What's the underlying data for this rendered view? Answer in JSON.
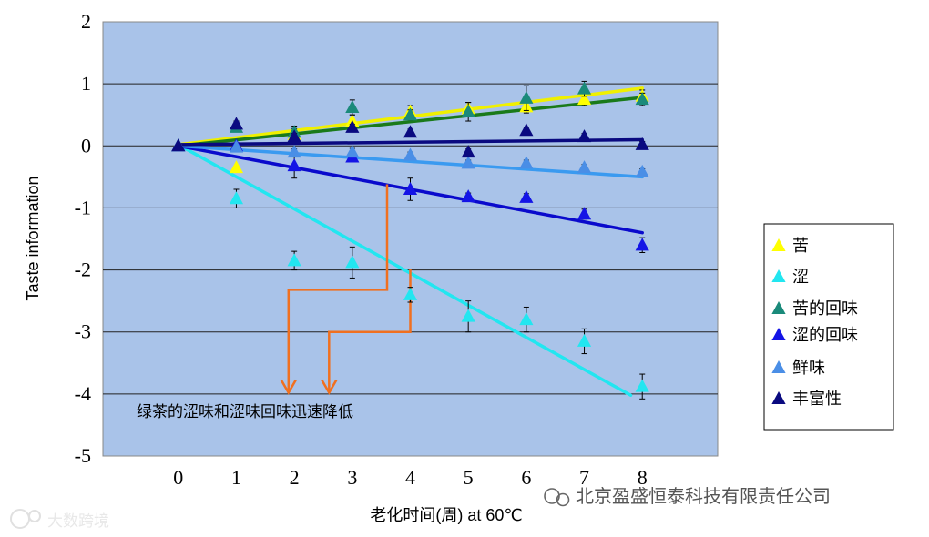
{
  "chart_data": {
    "type": "scatter",
    "title": "",
    "xlabel": "老化时间(周)    at 60℃",
    "ylabel": "Taste information",
    "xlim": [
      -1.3,
      9.3
    ],
    "ylim": [
      -5,
      2
    ],
    "x_ticks": [
      "0",
      "1",
      "2",
      "3",
      "4",
      "5",
      "6",
      "7",
      "8"
    ],
    "y_ticks": [
      "2",
      "1",
      "0",
      "-1",
      "-2",
      "-3",
      "-4",
      "-5"
    ],
    "grid": true,
    "legend_position": "right",
    "series": [
      {
        "name": "苦",
        "color": "#ffff00",
        "marker": "triangle",
        "x": [
          0,
          1,
          2,
          3,
          4,
          5,
          6,
          7,
          8
        ],
        "y": [
          0,
          -0.35,
          0.18,
          0.4,
          0.55,
          0.6,
          0.63,
          0.75,
          0.8
        ],
        "err": [
          0,
          0,
          0.1,
          0.1,
          0.1,
          0.1,
          0.1,
          0.1,
          0.1
        ],
        "trend": {
          "x0": 0,
          "y0": 0.02,
          "x1": 8,
          "y1": 0.93,
          "color": "#f0f000"
        }
      },
      {
        "name": "涩",
        "color": "#22e6f0",
        "marker": "triangle",
        "x": [
          0,
          1,
          2,
          3,
          4,
          5,
          6,
          7,
          8
        ],
        "y": [
          0,
          -0.85,
          -1.85,
          -1.88,
          -2.4,
          -2.75,
          -2.8,
          -3.15,
          -3.88
        ],
        "err": [
          0,
          0.15,
          0.15,
          0.25,
          0.12,
          0.25,
          0.2,
          0.2,
          0.2
        ],
        "trend": {
          "x0": 0,
          "y0": 0.02,
          "x1": 7.8,
          "y1": -4.02,
          "color": "#22e6f0"
        }
      },
      {
        "name": "苦的回味",
        "color": "#1a8a7a",
        "marker": "triangle",
        "x": [
          0,
          1,
          2,
          3,
          4,
          5,
          6,
          7,
          8
        ],
        "y": [
          0,
          0.3,
          0.22,
          0.62,
          0.5,
          0.55,
          0.77,
          0.92,
          0.75
        ],
        "err": [
          0,
          0.05,
          0.1,
          0.12,
          0.08,
          0.15,
          0.2,
          0.12,
          0.1
        ],
        "trend": {
          "x0": 0,
          "y0": 0,
          "x1": 8,
          "y1": 0.78,
          "color": "#1a7a1a"
        }
      },
      {
        "name": "涩的回味",
        "color": "#1414e6",
        "marker": "triangle",
        "x": [
          0,
          1,
          2,
          3,
          4,
          5,
          6,
          7,
          8
        ],
        "y": [
          0,
          0.0,
          -0.32,
          -0.18,
          -0.7,
          -0.82,
          -0.83,
          -1.1,
          -1.6
        ],
        "err": [
          0,
          0.05,
          0.2,
          0.08,
          0.18,
          0.06,
          0.06,
          0.08,
          0.12
        ],
        "trend": {
          "x0": 0,
          "y0": 0,
          "x1": 8,
          "y1": -1.4,
          "color": "#0a0acc"
        }
      },
      {
        "name": "鲜味",
        "color": "#4a8ee6",
        "marker": "triangle",
        "x": [
          0,
          1,
          2,
          3,
          4,
          5,
          6,
          7,
          8
        ],
        "y": [
          0,
          -0.02,
          -0.1,
          -0.1,
          -0.15,
          -0.28,
          -0.28,
          -0.35,
          -0.42
        ],
        "err": [
          0,
          0.03,
          0.05,
          0.06,
          0.05,
          0.05,
          0.05,
          0.05,
          0.05
        ],
        "trend": {
          "x0": 0,
          "y0": 0,
          "x1": 8,
          "y1": -0.5,
          "color": "#3a9af0"
        }
      },
      {
        "name": "丰富性",
        "color": "#0a0a80",
        "marker": "triangle",
        "x": [
          0,
          1,
          2,
          3,
          4,
          5,
          6,
          7,
          8
        ],
        "y": [
          0,
          0.35,
          0.15,
          0.3,
          0.22,
          -0.1,
          0.25,
          0.15,
          0.02
        ],
        "err": [
          0,
          0.05,
          0.05,
          0.05,
          0.05,
          0.05,
          0.05,
          0.05,
          0.05
        ],
        "trend": {
          "x0": 0,
          "y0": 0.02,
          "x1": 8,
          "y1": 0.1,
          "color": "#0a0a80"
        }
      }
    ],
    "annotation": "绿茶的涩味和涩味回味迅速降低",
    "arrow_color": "#f07020"
  },
  "watermarks": {
    "company": "北京盈盛恒泰科技有限责任公司",
    "source": "大数跨境"
  }
}
